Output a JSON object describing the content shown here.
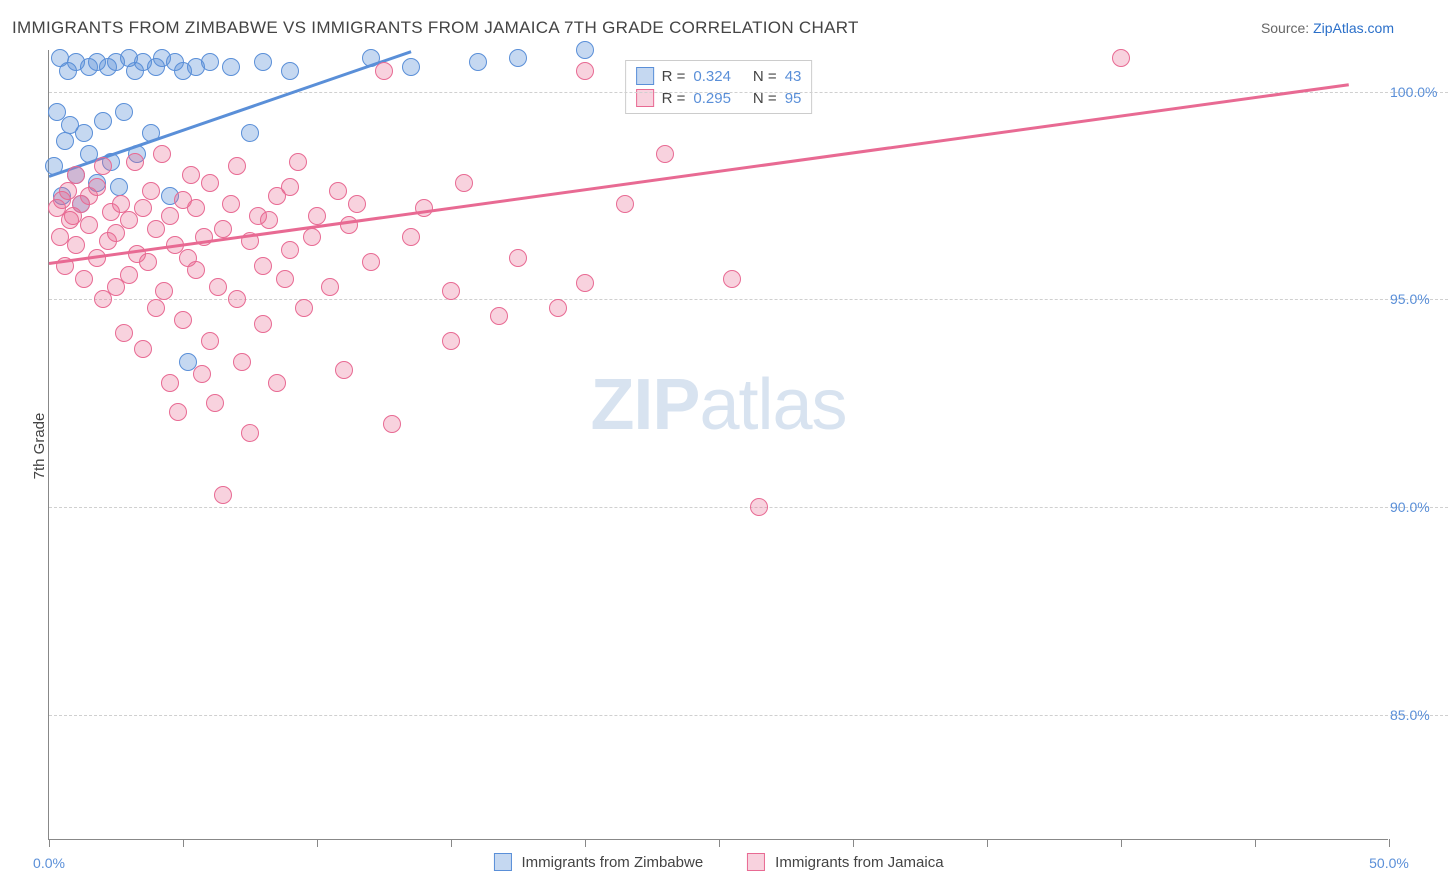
{
  "title": "IMMIGRANTS FROM ZIMBABWE VS IMMIGRANTS FROM JAMAICA 7TH GRADE CORRELATION CHART",
  "source_label": "Source: ",
  "source_name": "ZipAtlas.com",
  "y_axis_label": "7th Grade",
  "watermark_zip": "ZIP",
  "watermark_atlas": "atlas",
  "chart": {
    "type": "scatter",
    "background_color": "#ffffff",
    "grid_color": "#d0d0d0",
    "axis_color": "#888888",
    "xlim": [
      0,
      50
    ],
    "ylim": [
      82,
      101
    ],
    "xtick_positions": [
      0,
      5,
      10,
      15,
      20,
      25,
      30,
      35,
      40,
      45,
      50
    ],
    "xtick_labels": {
      "0": "0.0%",
      "50": "50.0%"
    },
    "ytick_positions": [
      85,
      90,
      95,
      100
    ],
    "ytick_labels": {
      "85": "85.0%",
      "90": "90.0%",
      "95": "95.0%",
      "100": "100.0%"
    },
    "marker_radius": 9,
    "marker_fill_opacity": 0.35,
    "marker_stroke_width": 1.5,
    "trendline_width": 3,
    "series": [
      {
        "name": "Immigrants from Zimbabwe",
        "color": "#5a8fd8",
        "fill": "rgba(90,143,216,0.35)",
        "R": "0.324",
        "N": "43",
        "trendline": {
          "x1": 0,
          "y1": 98.0,
          "x2": 13.5,
          "y2": 101.0
        },
        "points": [
          [
            0.2,
            98.2
          ],
          [
            0.3,
            99.5
          ],
          [
            0.4,
            100.8
          ],
          [
            0.5,
            97.5
          ],
          [
            0.6,
            98.8
          ],
          [
            0.7,
            100.5
          ],
          [
            0.8,
            99.2
          ],
          [
            1.0,
            100.7
          ],
          [
            1.0,
            98.0
          ],
          [
            1.2,
            97.3
          ],
          [
            1.3,
            99.0
          ],
          [
            1.5,
            100.6
          ],
          [
            1.5,
            98.5
          ],
          [
            1.8,
            100.7
          ],
          [
            1.8,
            97.8
          ],
          [
            2.0,
            99.3
          ],
          [
            2.2,
            100.6
          ],
          [
            2.3,
            98.3
          ],
          [
            2.5,
            100.7
          ],
          [
            2.6,
            97.7
          ],
          [
            2.8,
            99.5
          ],
          [
            3.0,
            100.8
          ],
          [
            3.2,
            100.5
          ],
          [
            3.3,
            98.5
          ],
          [
            3.5,
            100.7
          ],
          [
            3.8,
            99.0
          ],
          [
            4.0,
            100.6
          ],
          [
            4.2,
            100.8
          ],
          [
            4.5,
            97.5
          ],
          [
            4.7,
            100.7
          ],
          [
            5.0,
            100.5
          ],
          [
            5.2,
            93.5
          ],
          [
            5.5,
            100.6
          ],
          [
            6.0,
            100.7
          ],
          [
            6.8,
            100.6
          ],
          [
            7.5,
            99.0
          ],
          [
            8.0,
            100.7
          ],
          [
            9.0,
            100.5
          ],
          [
            12.0,
            100.8
          ],
          [
            13.5,
            100.6
          ],
          [
            16.0,
            100.7
          ],
          [
            17.5,
            100.8
          ],
          [
            20.0,
            101.0
          ]
        ]
      },
      {
        "name": "Immigrants from Jamaica",
        "color": "#e86a93",
        "fill": "rgba(232,106,147,0.30)",
        "R": "0.295",
        "N": "95",
        "trendline": {
          "x1": 0,
          "y1": 95.9,
          "x2": 48.5,
          "y2": 100.2
        },
        "points": [
          [
            0.3,
            97.2
          ],
          [
            0.4,
            96.5
          ],
          [
            0.5,
            97.4
          ],
          [
            0.6,
            95.8
          ],
          [
            0.7,
            97.6
          ],
          [
            0.8,
            96.9
          ],
          [
            0.9,
            97.0
          ],
          [
            1.0,
            98.0
          ],
          [
            1.0,
            96.3
          ],
          [
            1.2,
            97.3
          ],
          [
            1.3,
            95.5
          ],
          [
            1.5,
            96.8
          ],
          [
            1.5,
            97.5
          ],
          [
            1.8,
            96.0
          ],
          [
            1.8,
            97.7
          ],
          [
            2.0,
            98.2
          ],
          [
            2.0,
            95.0
          ],
          [
            2.2,
            96.4
          ],
          [
            2.3,
            97.1
          ],
          [
            2.5,
            96.6
          ],
          [
            2.5,
            95.3
          ],
          [
            2.7,
            97.3
          ],
          [
            2.8,
            94.2
          ],
          [
            3.0,
            96.9
          ],
          [
            3.0,
            95.6
          ],
          [
            3.2,
            98.3
          ],
          [
            3.3,
            96.1
          ],
          [
            3.5,
            97.2
          ],
          [
            3.5,
            93.8
          ],
          [
            3.7,
            95.9
          ],
          [
            3.8,
            97.6
          ],
          [
            4.0,
            94.8
          ],
          [
            4.0,
            96.7
          ],
          [
            4.2,
            98.5
          ],
          [
            4.3,
            95.2
          ],
          [
            4.5,
            97.0
          ],
          [
            4.5,
            93.0
          ],
          [
            4.7,
            96.3
          ],
          [
            4.8,
            92.3
          ],
          [
            5.0,
            97.4
          ],
          [
            5.0,
            94.5
          ],
          [
            5.2,
            96.0
          ],
          [
            5.3,
            98.0
          ],
          [
            5.5,
            95.7
          ],
          [
            5.5,
            97.2
          ],
          [
            5.7,
            93.2
          ],
          [
            5.8,
            96.5
          ],
          [
            6.0,
            94.0
          ],
          [
            6.0,
            97.8
          ],
          [
            6.2,
            92.5
          ],
          [
            6.3,
            95.3
          ],
          [
            6.5,
            96.7
          ],
          [
            6.5,
            90.3
          ],
          [
            6.8,
            97.3
          ],
          [
            7.0,
            95.0
          ],
          [
            7.0,
            98.2
          ],
          [
            7.2,
            93.5
          ],
          [
            7.5,
            96.4
          ],
          [
            7.5,
            91.8
          ],
          [
            7.8,
            97.0
          ],
          [
            8.0,
            95.8
          ],
          [
            8.0,
            94.4
          ],
          [
            8.2,
            96.9
          ],
          [
            8.5,
            97.5
          ],
          [
            8.5,
            93.0
          ],
          [
            8.8,
            95.5
          ],
          [
            9.0,
            97.7
          ],
          [
            9.0,
            96.2
          ],
          [
            9.3,
            98.3
          ],
          [
            9.5,
            94.8
          ],
          [
            9.8,
            96.5
          ],
          [
            10.0,
            97.0
          ],
          [
            10.5,
            95.3
          ],
          [
            10.8,
            97.6
          ],
          [
            11.0,
            93.3
          ],
          [
            11.2,
            96.8
          ],
          [
            11.5,
            97.3
          ],
          [
            12.0,
            95.9
          ],
          [
            12.5,
            100.5
          ],
          [
            12.8,
            92.0
          ],
          [
            13.5,
            96.5
          ],
          [
            14.0,
            97.2
          ],
          [
            15.0,
            94.0
          ],
          [
            15.0,
            95.2
          ],
          [
            15.5,
            97.8
          ],
          [
            16.8,
            94.6
          ],
          [
            17.5,
            96.0
          ],
          [
            19.0,
            94.8
          ],
          [
            20.0,
            95.4
          ],
          [
            20.0,
            100.5
          ],
          [
            21.5,
            97.3
          ],
          [
            23.0,
            98.5
          ],
          [
            25.5,
            95.5
          ],
          [
            26.5,
            90.0
          ],
          [
            40.0,
            100.8
          ]
        ]
      }
    ]
  },
  "legend": {
    "R_label": "R =",
    "N_label": "N ="
  }
}
